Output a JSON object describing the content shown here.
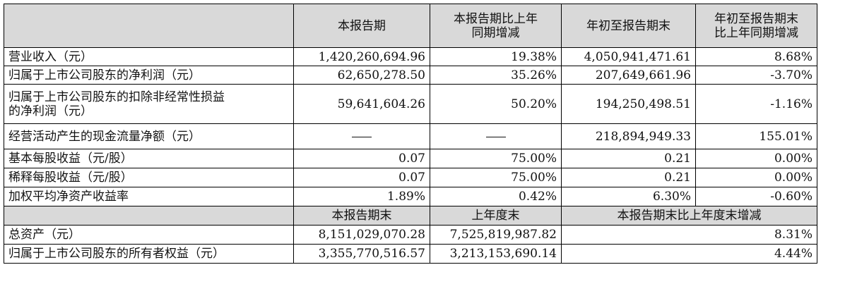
{
  "header": {
    "col1": "本报告期",
    "col2_line1": "本报告期比上年",
    "col2_line2": "同期增减",
    "col3": "年初至报告期末",
    "col4_line1": "年初至报告期末",
    "col4_line2": "比上年同期增减"
  },
  "rows": [
    {
      "label": "营业收入（元）",
      "current": "1,420,260,694.96",
      "yoy": "19.38%",
      "ytd": "4,050,941,471.61",
      "ytd_yoy": "8.68%"
    },
    {
      "label": "归属于上市公司股东的净利润（元）",
      "current": "62,650,278.50",
      "yoy": "35.26%",
      "ytd": "207,649,661.96",
      "ytd_yoy": "-3.70%"
    },
    {
      "label_line1": "归属于上市公司股东的扣除非经常性损益",
      "label_line2": "的净利润（元）",
      "current": "59,641,604.26",
      "yoy": "50.20%",
      "ytd": "194,250,498.51",
      "ytd_yoy": "-1.16%"
    },
    {
      "label": "经营活动产生的现金流量净额（元）",
      "current": "—",
      "yoy": "—",
      "ytd": "218,894,949.33",
      "ytd_yoy": "155.01%"
    },
    {
      "label": "基本每股收益（元/股）",
      "current": "0.07",
      "yoy": "75.00%",
      "ytd": "0.21",
      "ytd_yoy": "0.00%"
    },
    {
      "label": "稀释每股收益（元/股）",
      "current": "0.07",
      "yoy": "75.00%",
      "ytd": "0.21",
      "ytd_yoy": "0.00%"
    },
    {
      "label": "加权平均净资产收益率",
      "current": "1.89%",
      "yoy": "0.42%",
      "ytd": "6.30%",
      "ytd_yoy": "-0.60%"
    }
  ],
  "header2": {
    "col1": "本报告期末",
    "col2": "上年度末",
    "col34": "本报告期末比上年度末增减"
  },
  "rows2": [
    {
      "label": "总资产（元）",
      "period_end": "8,151,029,070.28",
      "prev_year_end": "7,525,819,987.82",
      "change": "8.31%"
    },
    {
      "label": "归属于上市公司股东的所有者权益（元）",
      "period_end": "3,355,770,516.57",
      "prev_year_end": "3,213,153,690.14",
      "change": "4.44%"
    }
  ]
}
